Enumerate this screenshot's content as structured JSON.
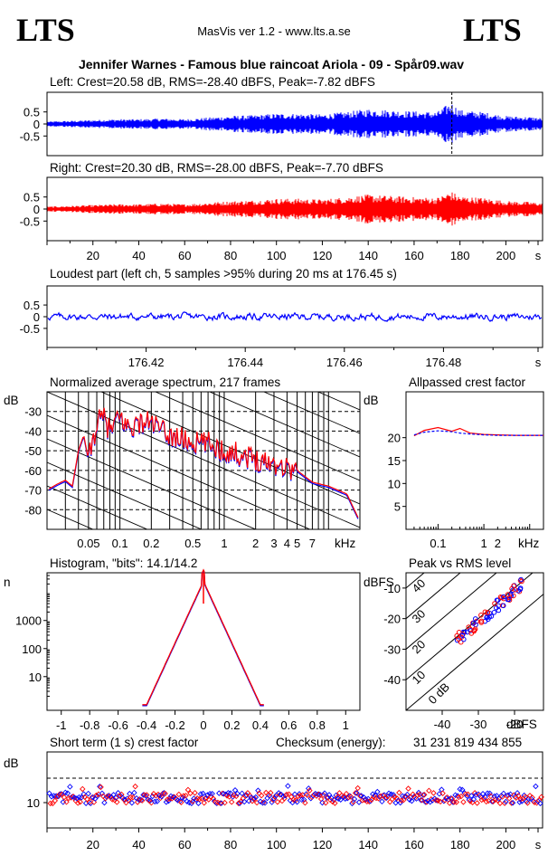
{
  "header": {
    "logo_left": "LTS",
    "logo_right": "LTS",
    "app": "MasVis ver 1.2 - www.lts.a.se",
    "file_title": "Jennifer Warnes - Famous blue raincoat Ariola - 09 - Spår09.wav"
  },
  "colors": {
    "left": "#0000ff",
    "right": "#ff0000",
    "axis": "#000000"
  },
  "chart_data": [
    {
      "id": "left",
      "type": "line",
      "title": "Left: Crest=20.58 dB, RMS=-28.40 dBFS, Peak=-7.82 dBFS",
      "ylim": [
        -1,
        1
      ],
      "yticks": [
        "0.5",
        "0",
        "-0.5"
      ],
      "xlim": [
        0,
        216
      ],
      "marker_x": 176.45,
      "envelope": {
        "x": [
          0,
          10,
          20,
          30,
          40,
          50,
          60,
          70,
          80,
          90,
          100,
          110,
          120,
          130,
          140,
          150,
          160,
          170,
          176,
          180,
          190,
          200,
          210,
          216
        ],
        "y": [
          0.06,
          0.08,
          0.1,
          0.12,
          0.12,
          0.14,
          0.12,
          0.16,
          0.2,
          0.22,
          0.26,
          0.26,
          0.24,
          0.3,
          0.38,
          0.35,
          0.32,
          0.3,
          0.55,
          0.35,
          0.3,
          0.2,
          0.18,
          0.15
        ]
      }
    },
    {
      "id": "right",
      "type": "line",
      "title": "Right: Crest=20.30 dB, RMS=-28.00 dBFS, Peak=-7.70 dBFS",
      "ylim": [
        -1,
        1
      ],
      "yticks": [
        "0.5",
        "0",
        "-0.5"
      ],
      "xlim": [
        0,
        216
      ],
      "xticks": [
        "20",
        "40",
        "60",
        "80",
        "100",
        "120",
        "140",
        "160",
        "180",
        "200",
        "s"
      ],
      "envelope": {
        "x": [
          0,
          10,
          20,
          30,
          40,
          50,
          60,
          70,
          80,
          90,
          100,
          110,
          120,
          130,
          140,
          150,
          160,
          170,
          176,
          180,
          190,
          200,
          210,
          216
        ],
        "y": [
          0.06,
          0.08,
          0.1,
          0.12,
          0.12,
          0.14,
          0.12,
          0.16,
          0.2,
          0.22,
          0.26,
          0.26,
          0.24,
          0.3,
          0.36,
          0.33,
          0.3,
          0.28,
          0.45,
          0.32,
          0.28,
          0.2,
          0.18,
          0.15
        ]
      }
    },
    {
      "id": "loudest",
      "type": "line",
      "title": "Loudest part (left  ch, 5 samples >95% during 20 ms at 176.45 s)",
      "ylim": [
        -1,
        1
      ],
      "yticks": [
        "0.5",
        "0",
        "-0.5"
      ],
      "xlim": [
        176.4,
        176.5
      ],
      "xticks": [
        "176.42",
        "176.44",
        "176.46",
        "176.48",
        "s"
      ]
    },
    {
      "id": "spectrum",
      "type": "line",
      "title": "Normalized average spectrum, 217 frames",
      "ylabel": "dB",
      "xunit": "kHz",
      "xlim_khz": [
        0.02,
        20
      ],
      "ylim": [
        -90,
        -20
      ],
      "yticks": [
        "-30",
        "-40",
        "-50",
        "-60",
        "-70",
        "-80"
      ],
      "xticks": [
        "0.05",
        "0.1",
        "0.2",
        "0.5",
        "1",
        "2",
        "3",
        "4",
        "5",
        "7"
      ],
      "curve_x_khz": [
        0.02,
        0.025,
        0.03,
        0.035,
        0.04,
        0.045,
        0.05,
        0.06,
        0.07,
        0.08,
        0.1,
        0.12,
        0.15,
        0.2,
        0.25,
        0.3,
        0.4,
        0.5,
        0.7,
        1,
        1.5,
        2,
        3,
        4,
        5,
        7,
        10,
        15,
        20
      ],
      "curve_db": [
        -70,
        -67,
        -65,
        -68,
        -50,
        -42,
        -55,
        -36,
        -33,
        -40,
        -33,
        -38,
        -36,
        -35,
        -40,
        -42,
        -44,
        -46,
        -46,
        -50,
        -52,
        -54,
        -56,
        -58,
        -60,
        -66,
        -68,
        -72,
        -86
      ]
    },
    {
      "id": "allpass",
      "type": "line",
      "title": "Allpassed crest factor",
      "ylabel": "dB",
      "xunit": "kHz",
      "ylim": [
        0,
        30
      ],
      "yticks": [
        "20",
        "15",
        "10",
        "5"
      ],
      "xticks": [
        "0.1",
        "1",
        "2"
      ],
      "x_khz": [
        0.03,
        0.05,
        0.1,
        0.2,
        0.3,
        0.5,
        1,
        2,
        5,
        10,
        20
      ],
      "left": [
        20.6,
        21.2,
        21.5,
        21.3,
        21.0,
        20.8,
        20.6,
        20.5,
        20.5,
        20.5,
        20.5
      ],
      "right": [
        20.4,
        21.6,
        22.2,
        21.4,
        22.0,
        21.0,
        20.7,
        20.6,
        20.5,
        20.5,
        20.5
      ]
    },
    {
      "id": "histogram",
      "type": "line",
      "title": "Histogram, \"bits\": 14.1/14.2",
      "ylabel": "n",
      "yscale": "log",
      "yticks": [
        "1000",
        "100",
        "10"
      ],
      "xlim": [
        -1.1,
        1.1
      ],
      "xticks": [
        "-1",
        "-0.8",
        "-0.6",
        "-0.4",
        "-0.2",
        "0",
        "0.2",
        "0.4",
        "0.6",
        "0.8",
        "1"
      ]
    },
    {
      "id": "peak_rms",
      "type": "scatter",
      "title": "Peak vs RMS level",
      "ylabel": "dBFS",
      "xlabel": "dBFS",
      "xlim": [
        -50,
        -12
      ],
      "ylim": [
        -50,
        -5
      ],
      "yticks": [
        "-10",
        "-20",
        "-30",
        "-40"
      ],
      "xticks": [
        "-40",
        "-30",
        "-20"
      ],
      "diag_labels": [
        "40",
        "30",
        "20",
        "10",
        "0 dB"
      ]
    },
    {
      "id": "short_crest",
      "type": "scatter",
      "title": "Short term (1 s) crest factor",
      "checksum_label": "Checksum (energy):",
      "checksum_value": "31 231 819 434 855",
      "ylabel": "dB",
      "ytick": "10",
      "xlim": [
        0,
        216
      ],
      "xticks": [
        "20",
        "40",
        "60",
        "80",
        "100",
        "120",
        "140",
        "160",
        "180",
        "200",
        "s"
      ]
    }
  ]
}
